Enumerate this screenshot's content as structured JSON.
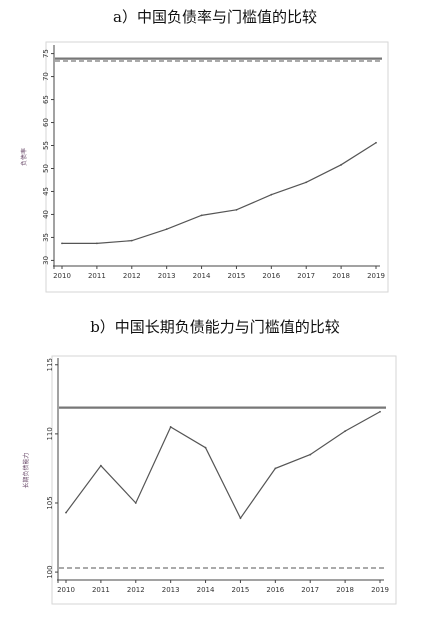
{
  "chart_data": [
    {
      "type": "line",
      "title": "a）中国负债率与门槛值的比较",
      "ylabel": "负债率",
      "xlabel": "",
      "x": [
        "2010",
        "2011",
        "2012",
        "2013",
        "2014",
        "2015",
        "2016",
        "2017",
        "2018",
        "2019"
      ],
      "yticks": [
        30,
        35,
        40,
        45,
        50,
        55,
        60,
        65,
        70,
        75
      ],
      "ylim": [
        29,
        76
      ],
      "grid": false,
      "series": [
        {
          "values": [
            33.7,
            33.7,
            34.3,
            36.8,
            39.8,
            41.0,
            44.3,
            47.0,
            50.8,
            55.6
          ]
        }
      ],
      "reference_lines": [
        {
          "y": 73.9,
          "style": "solid"
        },
        {
          "y": 73.4,
          "style": "dashed"
        }
      ]
    },
    {
      "type": "line",
      "title": "b）中国长期负债能力与门槛值的比较",
      "ylabel": "长期负债能力",
      "xlabel": "",
      "x": [
        "2010",
        "2011",
        "2012",
        "2013",
        "2014",
        "2015",
        "2016",
        "2017",
        "2018",
        "2019"
      ],
      "yticks": [
        100,
        105,
        110,
        115
      ],
      "ylim": [
        99.5,
        115.2
      ],
      "grid": false,
      "series": [
        {
          "values": [
            104.3,
            107.7,
            105.0,
            110.5,
            109.0,
            103.9,
            107.5,
            108.5,
            110.2,
            111.6
          ]
        }
      ],
      "reference_lines": [
        {
          "y": 111.9,
          "style": "solid"
        },
        {
          "y": 100.3,
          "style": "dashed"
        }
      ]
    }
  ]
}
